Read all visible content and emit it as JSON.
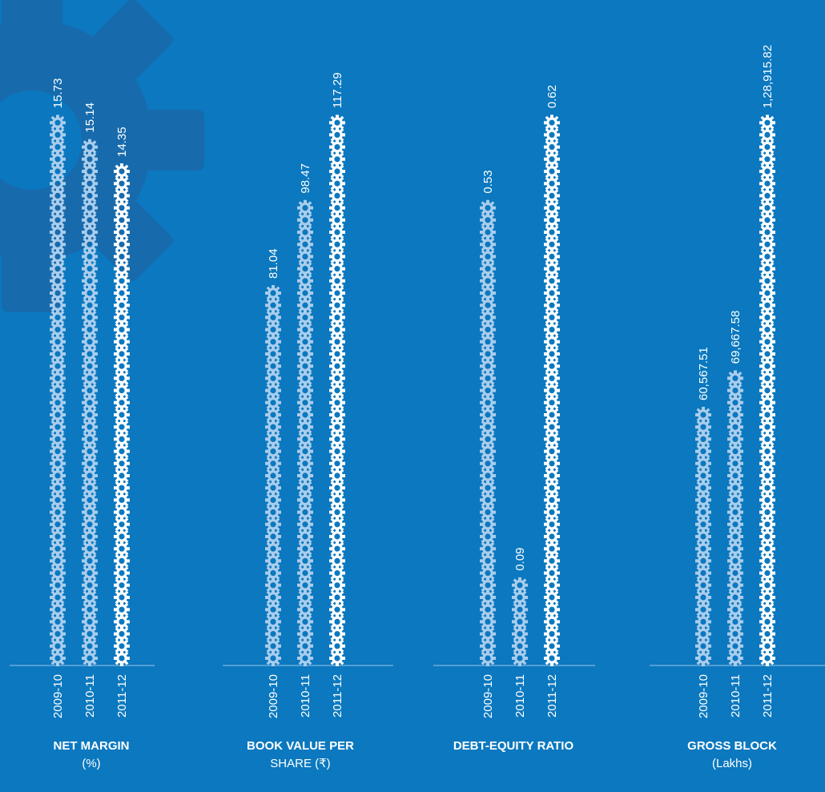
{
  "colors": {
    "background": "#0b78bf",
    "watermark": "#1a6aab",
    "bar_light": "#a9cdec",
    "bar_current": "#ffffff",
    "baseline": "#9cc4e4"
  },
  "chart_data": [
    {
      "type": "bar",
      "title": "NET MARGIN",
      "subtitle": "(%)",
      "categories": [
        "2009-10",
        "2010-11",
        "2011-12"
      ],
      "values": [
        15.73,
        15.14,
        14.35
      ],
      "value_labels": [
        "15.73",
        "15.14",
        "14.35"
      ],
      "ylim": [
        0,
        16.2
      ]
    },
    {
      "type": "bar",
      "title": "BOOK VALUE PER",
      "subtitle": "SHARE (₹)",
      "categories": [
        "2009-10",
        "2010-11",
        "2011-12"
      ],
      "values": [
        81.04,
        98.47,
        117.29
      ],
      "value_labels": [
        "81.04",
        "98.47",
        "117.29"
      ],
      "ylim": [
        0,
        120
      ]
    },
    {
      "type": "bar",
      "title": "DEBT-EQUITY RATIO",
      "subtitle": "",
      "categories": [
        "2009-10",
        "2010-11",
        "2011-12"
      ],
      "values": [
        0.53,
        0.09,
        0.62
      ],
      "value_labels": [
        "0.53",
        "0.09",
        "0.62"
      ],
      "ylim": [
        0,
        0.635
      ]
    },
    {
      "type": "bar",
      "title": "GROSS BLOCK",
      "subtitle": "(Lakhs)",
      "categories": [
        "2009-10",
        "2010-11",
        "2011-12"
      ],
      "values": [
        60567.51,
        69667.58,
        128915.82
      ],
      "value_labels": [
        "60,567.51",
        "69,667.58",
        "1,28,915.82"
      ],
      "ylim": [
        0,
        132000
      ]
    }
  ]
}
